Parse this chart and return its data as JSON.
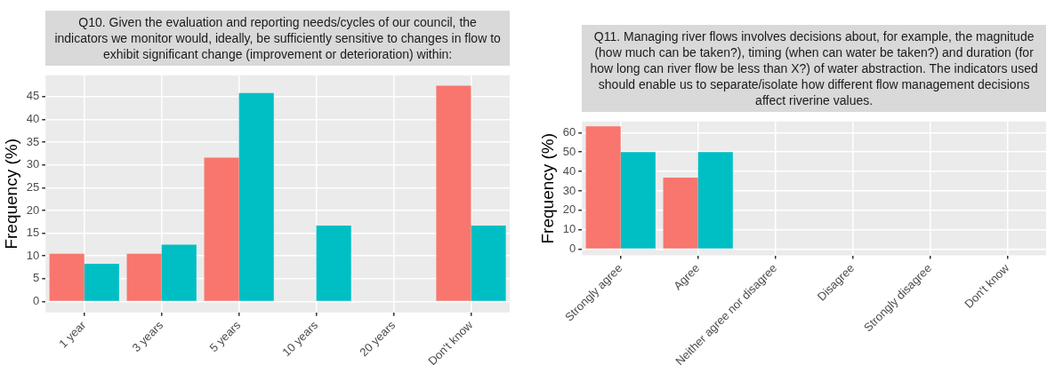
{
  "chart_data": [
    {
      "type": "bar",
      "title": "Q10. Given the evaluation and reporting needs/cycles of our council, the indicators we monitor would, ideally, be sufficiently sensitive to changes in flow to exhibit significant change (improvement or deterioration) within:",
      "ylabel": "Frequency (%)",
      "categories": [
        "1 year",
        "3 years",
        "5 years",
        "10 years",
        "20 years",
        "Don't know"
      ],
      "series": [
        {
          "color": "#f8766d",
          "values": [
            10.5,
            10.5,
            31.6,
            0,
            0,
            47.4
          ]
        },
        {
          "color": "#00bfc4",
          "values": [
            8.3,
            12.5,
            45.8,
            16.7,
            0,
            16.7
          ]
        }
      ],
      "ylim": [
        -2.4,
        49.7
      ],
      "yticks": [
        0,
        5,
        10,
        15,
        20,
        25,
        30,
        35,
        40,
        45
      ],
      "grid": true,
      "legend": false
    },
    {
      "type": "bar",
      "title": "Q11. Managing river flows involves decisions about, for example, the magnitude (how much can be taken?), timing (when can water be taken?) and duration (for how long can river flow be less than X?) of water abstraction. The indicators used should enable us to separate/isolate how different flow management decisions affect riverine values.",
      "ylabel": "Frequency (%)",
      "categories": [
        "Strongly agree",
        "Agree",
        "Neither agree nor disagree",
        "Disagree",
        "Strongly disagree",
        "Don't know"
      ],
      "series": [
        {
          "color": "#f8766d",
          "values": [
            63.2,
            36.8,
            0,
            0,
            0,
            0
          ]
        },
        {
          "color": "#00bfc4",
          "values": [
            50,
            50,
            0,
            0,
            0,
            0
          ]
        }
      ],
      "ylim": [
        -3.2,
        65.7
      ],
      "yticks": [
        0,
        10,
        20,
        30,
        40,
        50,
        60
      ],
      "grid": true,
      "legend": false
    }
  ]
}
